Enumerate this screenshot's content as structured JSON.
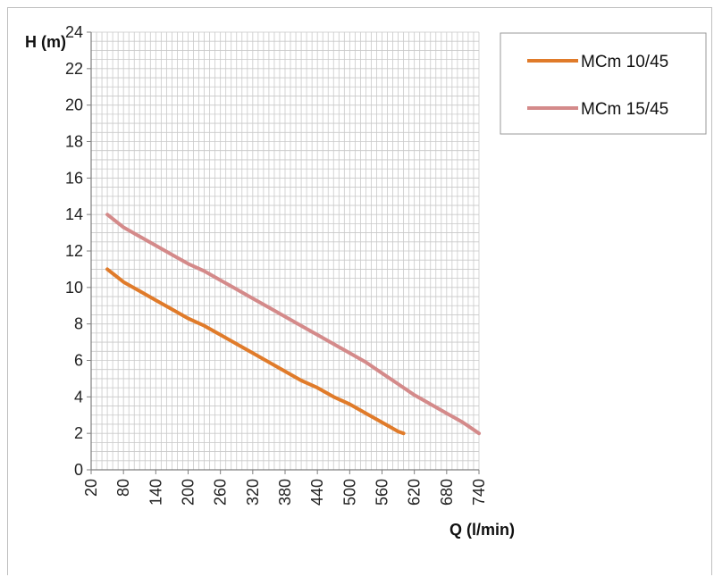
{
  "chart_data": {
    "type": "line",
    "title": "",
    "xlabel": "Q (l/min)",
    "ylabel": "H (m)",
    "x_ticks": [
      "20",
      "80",
      "140",
      "200",
      "260",
      "320",
      "380",
      "440",
      "500",
      "560",
      "620",
      "680",
      "740"
    ],
    "y_ticks": [
      "0",
      "2",
      "4",
      "6",
      "8",
      "10",
      "12",
      "14",
      "16",
      "18",
      "20",
      "22",
      "24"
    ],
    "xlim": [
      20,
      740
    ],
    "ylim": [
      0,
      24
    ],
    "grid": true,
    "legend_position": "top-right",
    "series": [
      {
        "name": "MCm 10/45",
        "color": "#e07b2a",
        "x": [
          50,
          80,
          110,
          140,
          170,
          200,
          230,
          260,
          290,
          320,
          350,
          380,
          410,
          440,
          470,
          500,
          530,
          560,
          590,
          600
        ],
        "y": [
          11,
          10.3,
          9.8,
          9.3,
          8.8,
          8.3,
          7.9,
          7.4,
          6.9,
          6.4,
          5.9,
          5.4,
          4.9,
          4.5,
          4.0,
          3.6,
          3.1,
          2.6,
          2.1,
          2.0
        ]
      },
      {
        "name": "MCm 15/45",
        "color": "#d48a8a",
        "x": [
          50,
          80,
          110,
          140,
          170,
          200,
          230,
          260,
          290,
          320,
          350,
          380,
          410,
          440,
          470,
          500,
          530,
          560,
          590,
          620,
          650,
          680,
          710,
          740
        ],
        "y": [
          14,
          13.3,
          12.8,
          12.3,
          11.8,
          11.3,
          10.9,
          10.4,
          9.9,
          9.4,
          8.9,
          8.4,
          7.9,
          7.4,
          6.9,
          6.4,
          5.9,
          5.3,
          4.7,
          4.1,
          3.6,
          3.1,
          2.6,
          2.0
        ]
      }
    ]
  }
}
